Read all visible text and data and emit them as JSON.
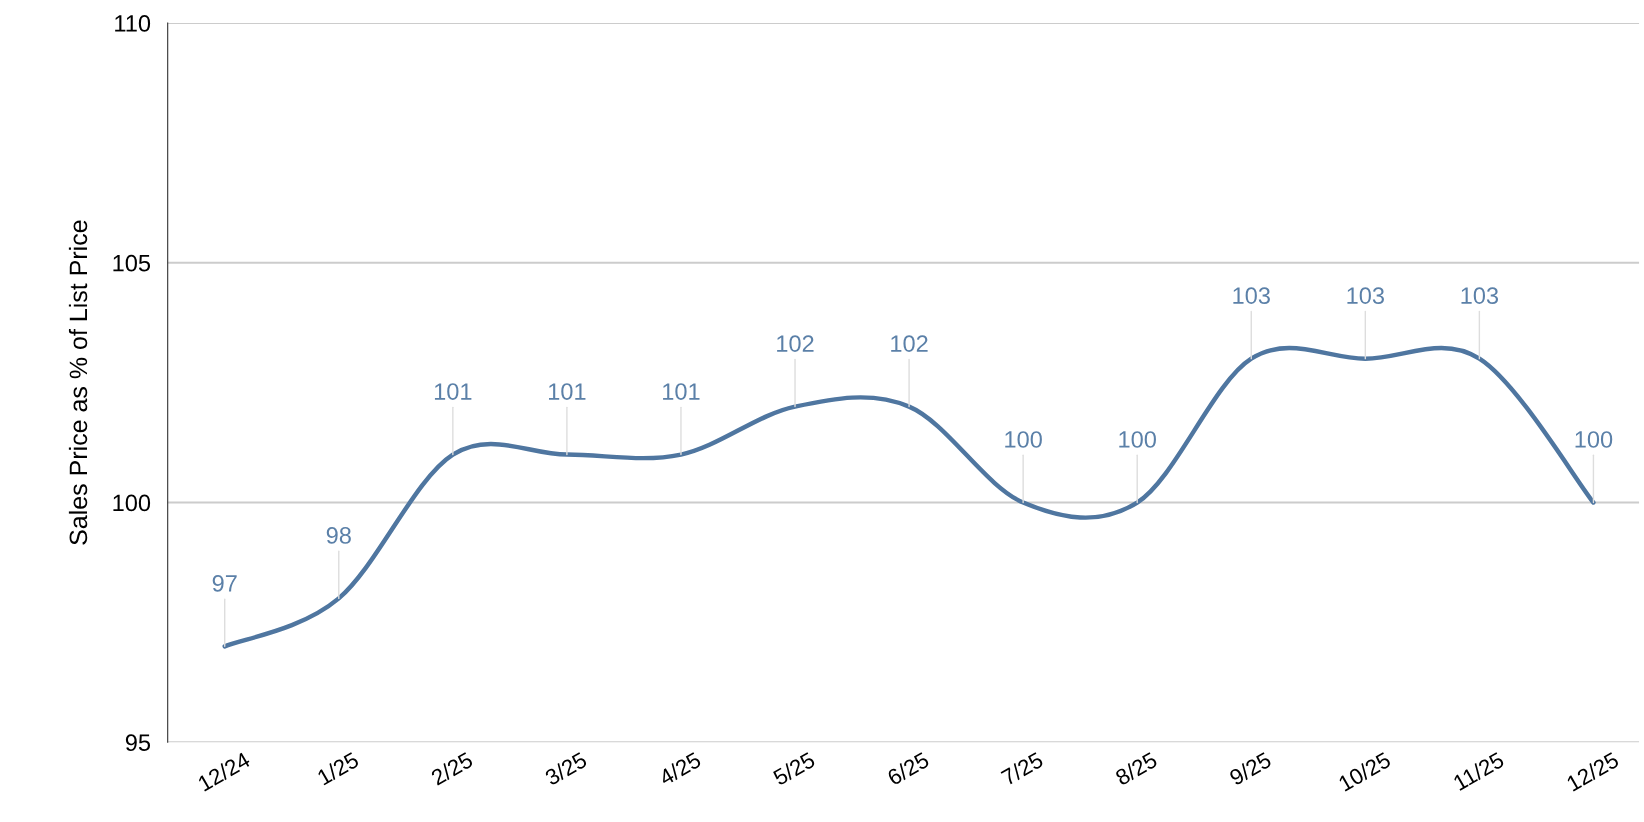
{
  "chart_data": {
    "type": "line",
    "ylabel": "Sales Price as % of List Price",
    "categories": [
      "12/24",
      "1/25",
      "2/25",
      "3/25",
      "4/25",
      "5/25",
      "6/25",
      "7/25",
      "8/25",
      "9/25",
      "10/25",
      "11/25",
      "12/25"
    ],
    "series": [
      {
        "color": "#4f76a0",
        "values": [
          97,
          98,
          101,
          101,
          101,
          102,
          102,
          100,
          100,
          103,
          103,
          103,
          100
        ]
      }
    ],
    "ylim": [
      95,
      110
    ],
    "yticks": [
      95,
      100,
      105,
      110
    ],
    "grid": "y",
    "data_labels": true,
    "marker": "none",
    "line_style": "solid",
    "legend": false
  }
}
